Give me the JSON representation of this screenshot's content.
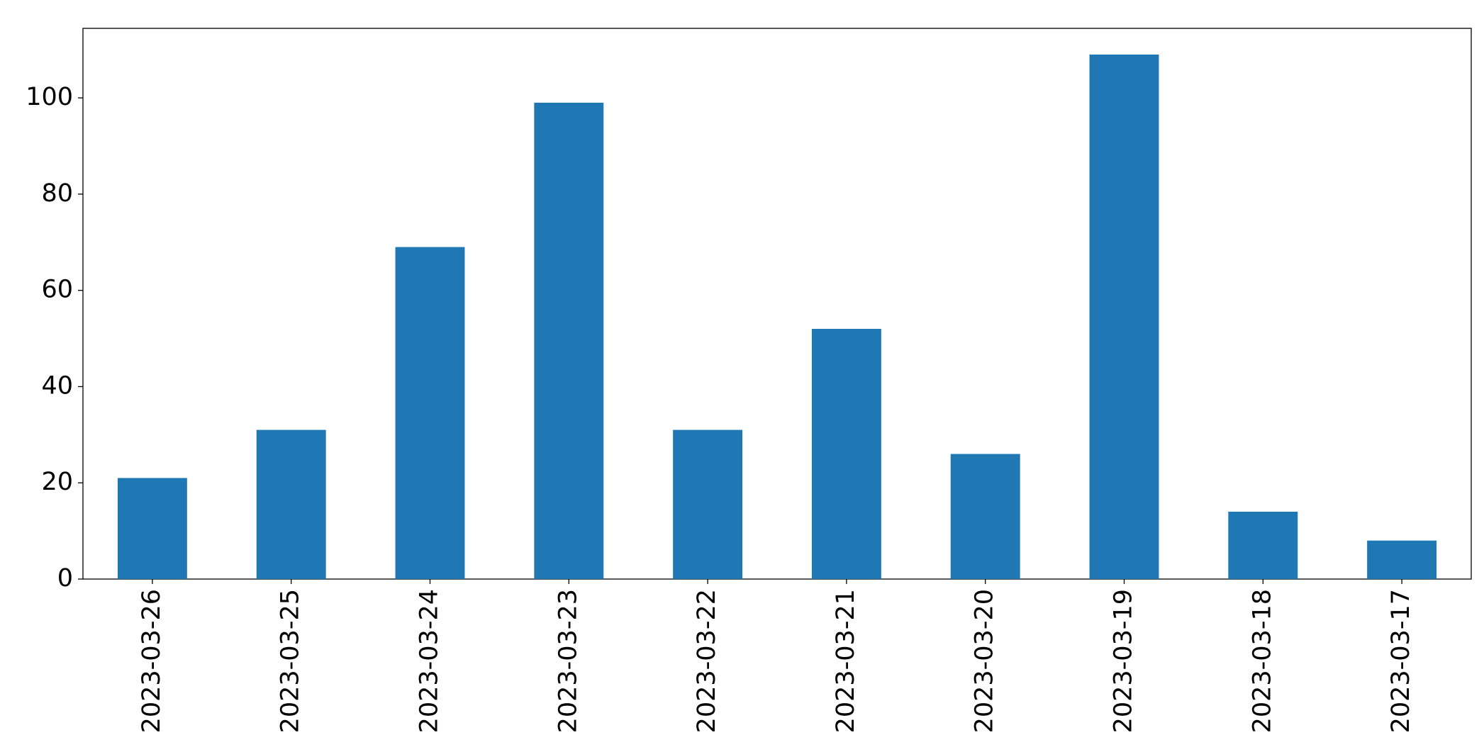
{
  "chart_data": {
    "type": "bar",
    "categories": [
      "2023-03-26",
      "2023-03-25",
      "2023-03-24",
      "2023-03-23",
      "2023-03-22",
      "2023-03-21",
      "2023-03-20",
      "2023-03-19",
      "2023-03-18",
      "2023-03-17"
    ],
    "values": [
      21,
      31,
      69,
      99,
      31,
      52,
      26,
      109,
      14,
      8
    ],
    "color": "#1f77b4",
    "ylim": [
      0,
      114.45
    ],
    "yticks": [
      0,
      20,
      40,
      60,
      80,
      100
    ],
    "grid": false
  }
}
